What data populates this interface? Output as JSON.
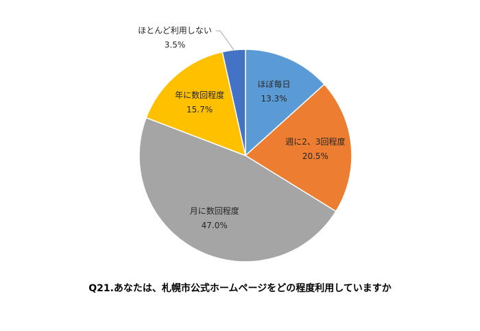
{
  "chart_data": {
    "type": "pie",
    "title": "Q21.あなたは、札幌市公式ホームページをどの程度利用していますか",
    "categories": [
      "ほぼ毎日",
      "週に2、3回程度",
      "月に数回程度",
      "年に数回程度",
      "ほとんど利用しない"
    ],
    "values": [
      13.3,
      20.5,
      47.0,
      15.7,
      3.5
    ],
    "value_labels": [
      "13.3%",
      "20.5%",
      "47.0%",
      "15.7%",
      "3.5%"
    ],
    "colors": [
      "#5b9bd5",
      "#ed7d31",
      "#a5a5a5",
      "#ffc000",
      "#4472c4"
    ]
  }
}
